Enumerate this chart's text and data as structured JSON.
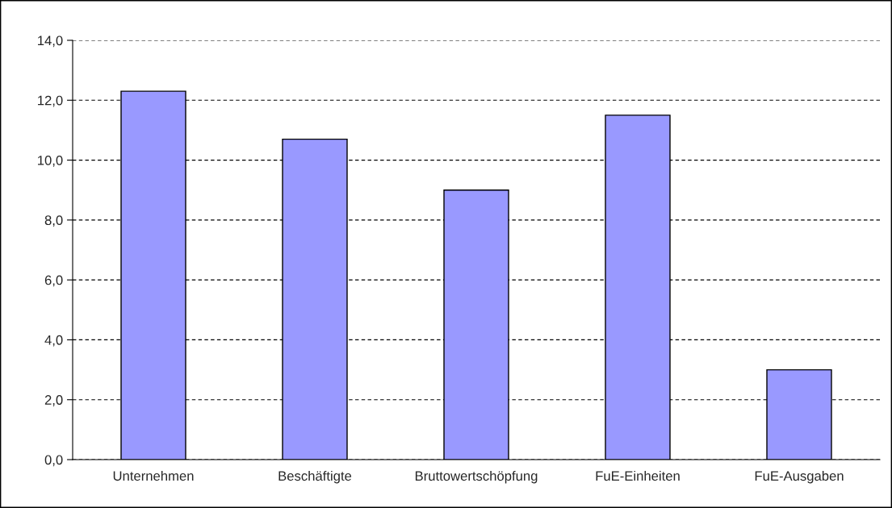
{
  "chart_data": {
    "type": "bar",
    "categories": [
      "Unternehmen",
      "Beschäftigte",
      "Bruttowertschöpfung",
      "FuE-Einheiten",
      "FuE-Ausgaben"
    ],
    "values": [
      12.3,
      10.7,
      9.0,
      11.5,
      3.0
    ],
    "color": "#9999ff",
    "ylim": [
      0,
      14
    ],
    "yticks": [
      {
        "value": 0,
        "label": "0,0"
      },
      {
        "value": 2,
        "label": "2,0"
      },
      {
        "value": 4,
        "label": "4,0"
      },
      {
        "value": 6,
        "label": "6,0"
      },
      {
        "value": 8,
        "label": "8,0"
      },
      {
        "value": 10,
        "label": "10,0"
      },
      {
        "value": 12,
        "label": "12,0"
      },
      {
        "value": 14,
        "label": "14,0"
      }
    ],
    "grid": "y",
    "line_style": "dashed"
  }
}
